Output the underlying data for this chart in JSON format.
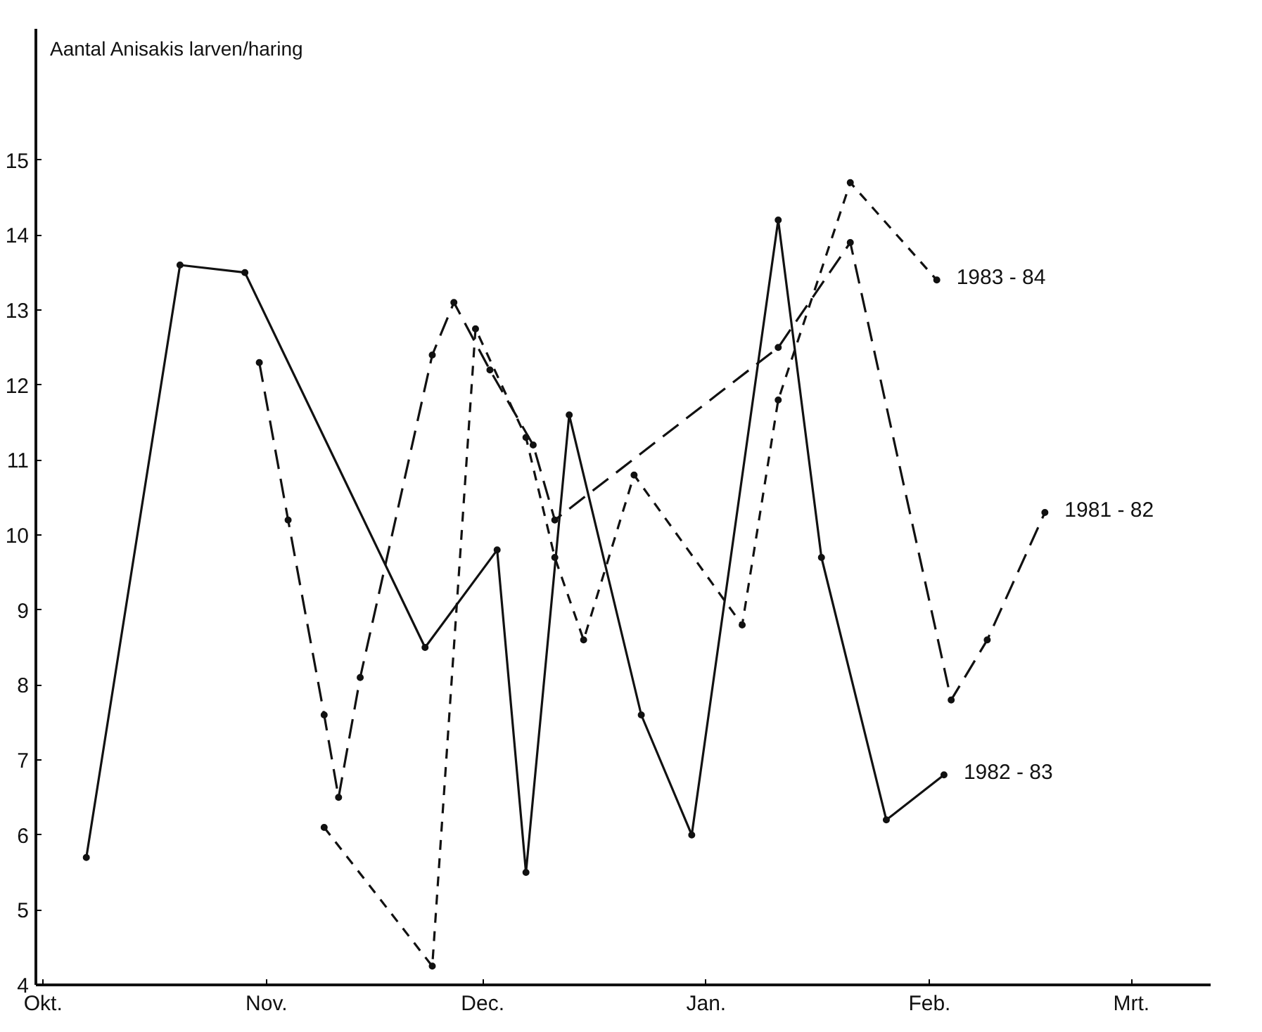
{
  "chart_data": {
    "type": "line",
    "ylabel": "Aantal Anisakis larven/haring",
    "xlim": [
      "1982-09-30",
      "1983-03-12"
    ],
    "xticks": [
      {
        "value": "1982-10-01",
        "label": "Okt."
      },
      {
        "value": "1982-11-01",
        "label": "Nov."
      },
      {
        "value": "1982-12-01",
        "label": "Dec."
      },
      {
        "value": "1983-01-01",
        "label": "Jan."
      },
      {
        "value": "1983-02-01",
        "label": "Feb."
      },
      {
        "value": "1983-03-01",
        "label": "Mrt."
      }
    ],
    "ylim": [
      4,
      16.75
    ],
    "yticks": [
      4,
      5,
      6,
      7,
      8,
      9,
      10,
      11,
      12,
      13,
      14,
      15
    ],
    "grid": false,
    "marker": "circle",
    "series": [
      {
        "name": "1982 - 83",
        "color": "#111111",
        "line_style": "solid",
        "x": [
          "1982-10-07",
          "1982-10-20",
          "1982-10-29",
          "1982-11-23",
          "1982-12-03",
          "1982-12-07",
          "1982-12-13",
          "1982-12-23",
          "1982-12-30",
          "1983-01-11",
          "1983-01-17",
          "1983-01-26",
          "1983-02-03"
        ],
        "values": [
          5.7,
          13.6,
          13.5,
          8.5,
          9.8,
          5.5,
          11.6,
          7.6,
          6.0,
          14.2,
          9.7,
          6.2,
          6.8
        ]
      },
      {
        "name": "1981 - 82",
        "color": "#111111",
        "line_style": "dashed",
        "x": [
          "1982-10-31",
          "1982-11-04",
          "1982-11-09",
          "1982-11-11",
          "1982-11-14",
          "1982-11-24",
          "1982-11-27",
          "1982-12-02",
          "1982-12-08",
          "1982-12-11",
          "1983-01-11",
          "1983-01-21",
          "1983-02-04",
          "1983-02-09",
          "1983-02-17"
        ],
        "values": [
          12.3,
          10.2,
          7.6,
          6.5,
          8.1,
          12.4,
          13.1,
          12.2,
          11.2,
          10.2,
          12.5,
          13.9,
          7.8,
          8.6,
          10.3
        ]
      },
      {
        "name": "1983 - 84",
        "color": "#111111",
        "line_style": "dashed",
        "x": [
          "1982-11-09",
          "1982-11-24",
          "1982-11-30",
          "1982-12-07",
          "1982-12-11",
          "1982-12-15",
          "1982-12-22",
          "1983-01-06",
          "1983-01-11",
          "1983-01-21",
          "1983-02-02"
        ],
        "values": [
          6.1,
          4.25,
          12.75,
          11.3,
          9.7,
          8.6,
          10.8,
          8.8,
          11.8,
          14.7,
          13.4
        ]
      }
    ]
  }
}
